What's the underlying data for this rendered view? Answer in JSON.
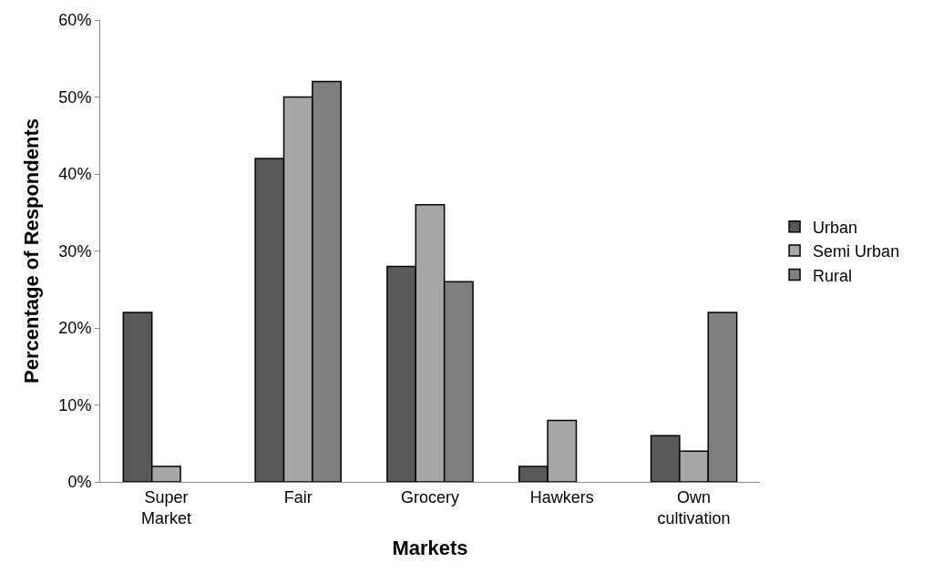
{
  "chart_data": {
    "type": "bar",
    "xlabel": "Markets",
    "ylabel": "Percentage of Respondents",
    "categories": [
      "Super Market",
      "Fair",
      "Grocery",
      "Hawkers",
      "Own cultivation"
    ],
    "series": [
      {
        "name": "Urban",
        "color": "#595959",
        "values": [
          22,
          42,
          28,
          2,
          6
        ]
      },
      {
        "name": "Semi Urban",
        "color": "#a6a6a6",
        "values": [
          2,
          50,
          36,
          8,
          4
        ]
      },
      {
        "name": "Rural",
        "color": "#7f7f7f",
        "values": [
          null,
          52,
          26,
          null,
          22
        ]
      }
    ],
    "ylim": [
      0,
      60
    ],
    "yticks": [
      {
        "value": 0,
        "label": "0%"
      },
      {
        "value": 10,
        "label": "10%"
      },
      {
        "value": 20,
        "label": "20%"
      },
      {
        "value": 30,
        "label": "30%"
      },
      {
        "value": 40,
        "label": "40%"
      },
      {
        "value": 50,
        "label": "50%"
      },
      {
        "value": 60,
        "label": "60%"
      }
    ],
    "legend": "right"
  }
}
